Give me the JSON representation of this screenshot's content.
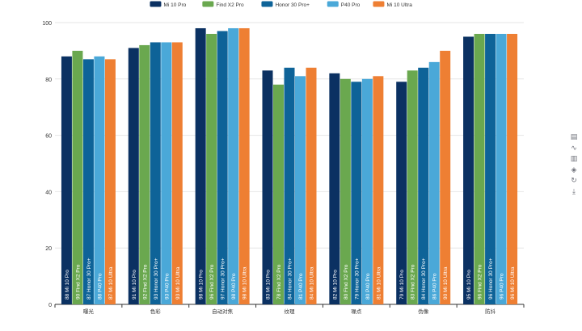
{
  "chart_data": {
    "type": "bar",
    "categories": [
      "曝光",
      "色彩",
      "自动对焦",
      "纹理",
      "噪点",
      "伪像",
      "防抖"
    ],
    "series": [
      {
        "name": "Mi 10 Pro",
        "color": "#0b3162",
        "values": [
          88,
          91,
          98,
          83,
          82,
          79,
          95
        ]
      },
      {
        "name": "Find X2 Pro",
        "color": "#6aa84f",
        "values": [
          90,
          92,
          96,
          78,
          80,
          83,
          96
        ]
      },
      {
        "name": "Honor 30 Pro+",
        "color": "#0e6398",
        "values": [
          87,
          93,
          97,
          84,
          79,
          84,
          96
        ]
      },
      {
        "name": "P40 Pro",
        "color": "#4aa8d8",
        "values": [
          88,
          93,
          98,
          81,
          80,
          86,
          96
        ]
      },
      {
        "name": "Mi 10 Ultra",
        "color": "#ee7f33",
        "values": [
          87,
          93,
          98,
          84,
          81,
          90,
          96
        ]
      }
    ],
    "ylim": [
      0,
      100
    ],
    "yticks": [
      0,
      20,
      40,
      60,
      80,
      100
    ],
    "grid": true,
    "legend_position": "top-center",
    "data_labels": "value and series name, rotated, inside bar bottom"
  },
  "toolbox": {
    "items": [
      {
        "name": "data-view-icon",
        "glyph": "▤"
      },
      {
        "name": "line-chart-icon",
        "glyph": "∿"
      },
      {
        "name": "bar-chart-icon",
        "glyph": "▥"
      },
      {
        "name": "stack-icon",
        "glyph": "◈"
      },
      {
        "name": "restore-icon",
        "glyph": "↻"
      },
      {
        "name": "download-icon",
        "glyph": "⤓"
      }
    ]
  }
}
